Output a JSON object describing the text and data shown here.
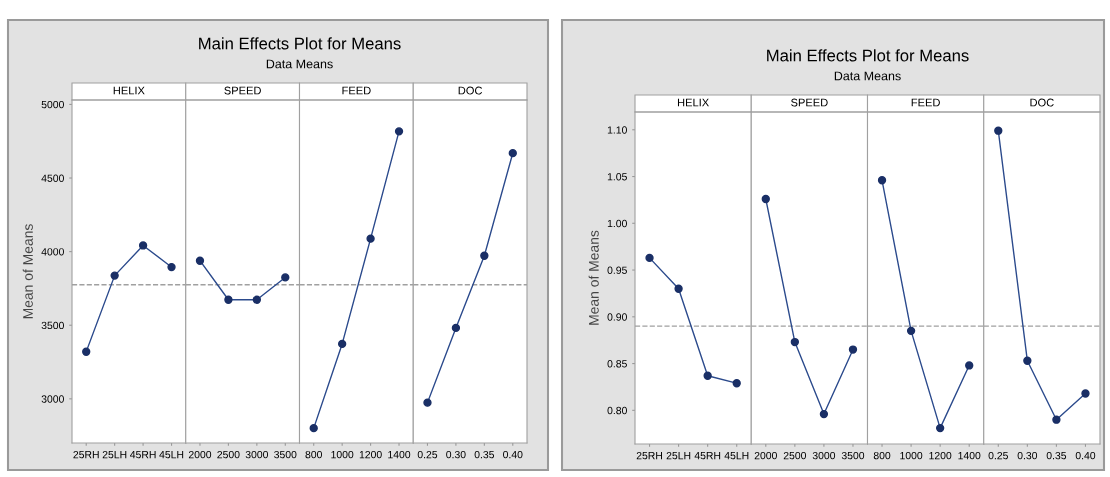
{
  "chart_data": [
    {
      "type": "line",
      "title": "HELIX",
      "annotations": [
        "Main Effects Plot for Means",
        "Data Means"
      ],
      "ylabel": "Mean of Means",
      "categories": [
        "25RH",
        "25LH",
        "45RH",
        "45LH"
      ],
      "values": [
        3320,
        3837,
        4042,
        3895
      ],
      "color": "#2b4a8c",
      "marker": "circle",
      "ylim": [
        2700,
        5030
      ],
      "yticks": [
        3000,
        3500,
        4000,
        4500,
        5000
      ],
      "ref_lines": [
        {
          "axis": "y",
          "value": 3775,
          "color": "#a0a0a0",
          "line_style": "dashed"
        }
      ],
      "grid": false
    },
    {
      "type": "line",
      "title": "SPEED",
      "categories": [
        "2000",
        "2500",
        "3000",
        "3500"
      ],
      "values": [
        3938,
        3673,
        3673,
        3825
      ],
      "color": "#2b4a8c",
      "marker": "circle",
      "ylim": [
        2700,
        5030
      ],
      "tick_labels": "x",
      "ref_lines": [
        {
          "axis": "y",
          "value": 3775,
          "color": "#a0a0a0",
          "line_style": "dashed"
        }
      ],
      "grid": false
    },
    {
      "type": "line",
      "title": "FEED",
      "categories": [
        "800",
        "1000",
        "1200",
        "1400"
      ],
      "values": [
        2801,
        3373,
        4088,
        4817
      ],
      "color": "#2b4a8c",
      "marker": "circle",
      "ylim": [
        2700,
        5030
      ],
      "tick_labels": "x",
      "ref_lines": [
        {
          "axis": "y",
          "value": 3775,
          "color": "#a0a0a0",
          "line_style": "dashed"
        }
      ],
      "grid": false
    },
    {
      "type": "line",
      "title": "DOC",
      "categories": [
        "0.25",
        "0.30",
        "0.35",
        "0.40"
      ],
      "values": [
        2974,
        3482,
        3972,
        4669
      ],
      "color": "#2b4a8c",
      "marker": "circle",
      "ylim": [
        2700,
        5030
      ],
      "tick_labels": "x",
      "ref_lines": [
        {
          "axis": "y",
          "value": 3775,
          "color": "#a0a0a0",
          "line_style": "dashed"
        }
      ],
      "grid": false
    },
    {
      "type": "line",
      "title": "HELIX",
      "annotations": [
        "Main Effects Plot for Means",
        "Data Means"
      ],
      "ylabel": "Mean of Means",
      "categories": [
        "25RH",
        "25LH",
        "45RH",
        "45LH"
      ],
      "values": [
        0.963,
        0.93,
        0.837,
        0.829
      ],
      "color": "#2b4a8c",
      "marker": "circle",
      "ylim": [
        0.764,
        1.119
      ],
      "yticks": [
        {
          "value": 0.8,
          "label": "0.80"
        },
        {
          "value": 0.85,
          "label": "0.85"
        },
        {
          "value": 0.9,
          "label": "0.90"
        },
        {
          "value": 0.95,
          "label": "0.95"
        },
        {
          "value": 1.0,
          "label": "1.00"
        },
        {
          "value": 1.05,
          "label": "1.05"
        },
        {
          "value": 1.1,
          "label": "1.10"
        }
      ],
      "ref_lines": [
        {
          "axis": "y",
          "value": 0.89,
          "color": "#a0a0a0",
          "line_style": "dashed"
        }
      ],
      "grid": false
    },
    {
      "type": "line",
      "title": "SPEED",
      "categories": [
        "2000",
        "2500",
        "3000",
        "3500"
      ],
      "values": [
        1.026,
        0.873,
        0.796,
        0.865
      ],
      "color": "#2b4a8c",
      "marker": "circle",
      "ylim": [
        0.764,
        1.119
      ],
      "tick_labels": "x",
      "ref_lines": [
        {
          "axis": "y",
          "value": 0.89,
          "color": "#a0a0a0",
          "line_style": "dashed"
        }
      ],
      "grid": false
    },
    {
      "type": "line",
      "title": "FEED",
      "categories": [
        "800",
        "1000",
        "1200",
        "1400"
      ],
      "values": [
        1.046,
        0.885,
        0.781,
        0.848
      ],
      "color": "#2b4a8c",
      "marker": "circle",
      "ylim": [
        0.764,
        1.119
      ],
      "tick_labels": "x",
      "ref_lines": [
        {
          "axis": "y",
          "value": 0.89,
          "color": "#a0a0a0",
          "line_style": "dashed"
        }
      ],
      "grid": false
    },
    {
      "type": "line",
      "title": "DOC",
      "categories": [
        "0.25",
        "0.30",
        "0.35",
        "0.40"
      ],
      "values": [
        1.099,
        0.853,
        0.79,
        0.818
      ],
      "color": "#2b4a8c",
      "marker": "circle",
      "ylim": [
        0.764,
        1.119
      ],
      "tick_labels": "x",
      "ref_lines": [
        {
          "axis": "y",
          "value": 0.89,
          "color": "#a0a0a0",
          "line_style": "dashed"
        }
      ],
      "grid": false
    }
  ]
}
